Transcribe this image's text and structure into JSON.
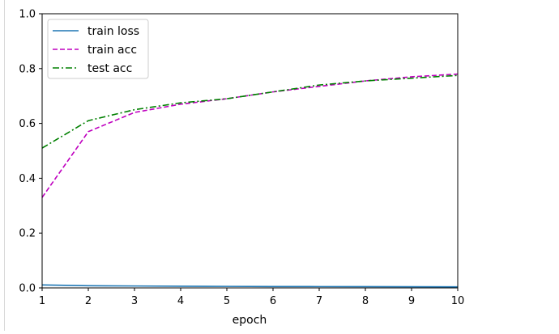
{
  "chart_data": {
    "type": "line",
    "title": "",
    "xlabel": "epoch",
    "ylabel": "",
    "x": [
      1,
      2,
      3,
      4,
      5,
      6,
      7,
      8,
      9,
      10
    ],
    "xlim": [
      1,
      10
    ],
    "ylim": [
      0.0,
      1.0
    ],
    "xticks": [
      "1",
      "2",
      "3",
      "4",
      "5",
      "6",
      "7",
      "8",
      "9",
      "10"
    ],
    "yticks": [
      "0.0",
      "0.2",
      "0.4",
      "0.6",
      "0.8",
      "1.0"
    ],
    "grid": false,
    "legend_position": "top-left",
    "series": [
      {
        "name": "train loss",
        "values": [
          0.011,
          0.008,
          0.007,
          0.006,
          0.0055,
          0.005,
          0.0048,
          0.0045,
          0.0043,
          0.004
        ],
        "color": "#1f77b4",
        "style": "solid"
      },
      {
        "name": "train acc",
        "values": [
          0.33,
          0.57,
          0.64,
          0.67,
          0.69,
          0.715,
          0.735,
          0.755,
          0.77,
          0.78
        ],
        "color": "#bf00bf",
        "style": "dashed"
      },
      {
        "name": "test acc",
        "values": [
          0.51,
          0.61,
          0.65,
          0.675,
          0.69,
          0.715,
          0.74,
          0.755,
          0.765,
          0.775
        ],
        "color": "#008000",
        "style": "dashdot"
      }
    ]
  }
}
